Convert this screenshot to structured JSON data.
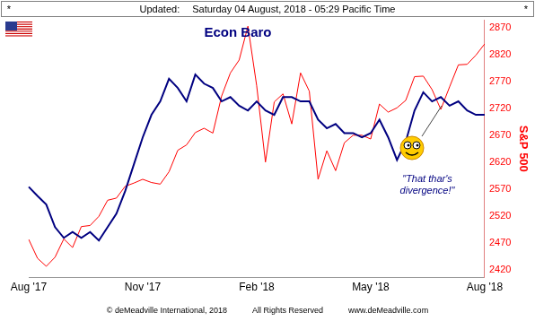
{
  "header": [
    "*",
    "Updated:",
    "Saturday 04 August, 2018 - 05:29 Pacific Time",
    "*"
  ],
  "footer": [
    "© deMeadville International, 2018",
    "All Rights Reserved",
    "www.deMeadville.com"
  ],
  "chart_data": {
    "type": "line",
    "title": "Econ Baro",
    "ylabel": "S&P 500",
    "annotations": [
      "\"That thar's divergence!\""
    ],
    "categories": [
      "Aug '17",
      null,
      null,
      null,
      null,
      null,
      null,
      null,
      null,
      null,
      null,
      null,
      null,
      "Nov '17",
      null,
      null,
      null,
      null,
      null,
      null,
      null,
      null,
      null,
      null,
      null,
      null,
      "Feb '18",
      null,
      null,
      null,
      null,
      null,
      null,
      null,
      null,
      null,
      null,
      null,
      null,
      "May '18",
      null,
      null,
      null,
      null,
      null,
      null,
      null,
      null,
      null,
      null,
      null,
      null,
      "Aug '18"
    ],
    "series": [
      {
        "name": "Econ Baro",
        "color": "#000080",
        "values": [
          2574,
          2557,
          2541,
          2499,
          2479,
          2490,
          2479,
          2490,
          2474,
          2499,
          2524,
          2566,
          2616,
          2666,
          2708,
          2733,
          2775,
          2758,
          2733,
          2783,
          2766,
          2758,
          2733,
          2741,
          2725,
          2716,
          2733,
          2716,
          2708,
          2741,
          2741,
          2733,
          2733,
          2699,
          2683,
          2691,
          2674,
          2674,
          2666,
          2674,
          2699,
          2666,
          2624,
          2658,
          2716,
          2750,
          2733,
          2741,
          2725,
          2733,
          2716,
          2708,
          2708
        ]
      },
      {
        "name": "S&P 500",
        "color": "#ff0000",
        "values": [
          2476,
          2441,
          2426,
          2443,
          2477,
          2461,
          2500,
          2502,
          2519,
          2549,
          2553,
          2575,
          2581,
          2588,
          2582,
          2579,
          2602,
          2642,
          2652,
          2675,
          2683,
          2674,
          2743,
          2786,
          2810,
          2873,
          2762,
          2620,
          2732,
          2747,
          2691,
          2786,
          2752,
          2588,
          2641,
          2604,
          2656,
          2670,
          2670,
          2663,
          2728,
          2713,
          2721,
          2735,
          2779,
          2780,
          2755,
          2718,
          2760,
          2801,
          2802,
          2819,
          2840
        ]
      }
    ],
    "ylim": [
      2405,
      2885
    ],
    "yticks": [
      2420,
      2470,
      2520,
      2570,
      2620,
      2670,
      2720,
      2770,
      2820,
      2870
    ],
    "grid": false
  }
}
